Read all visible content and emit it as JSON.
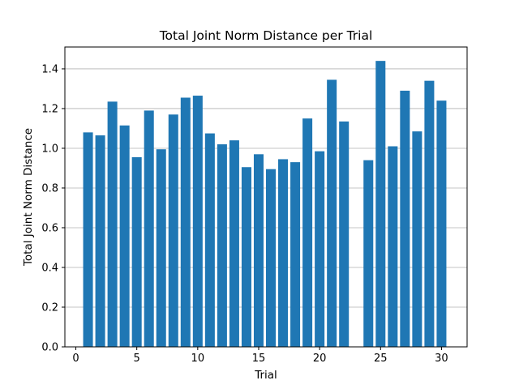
{
  "chart_data": {
    "type": "bar",
    "title": "Total Joint Norm Distance per Trial",
    "xlabel": "Trial",
    "ylabel": "Total Joint Norm Distance",
    "xlim": [
      -0.9,
      32.1
    ],
    "ylim": [
      0,
      1.51
    ],
    "xticks": [
      0,
      5,
      10,
      15,
      20,
      25,
      30
    ],
    "yticks": [
      0.0,
      0.2,
      0.4,
      0.6,
      0.8,
      1.0,
      1.2,
      1.4
    ],
    "ytick_labels": [
      "0.0",
      "0.2",
      "0.4",
      "0.6",
      "0.8",
      "1.0",
      "1.2",
      "1.4"
    ],
    "grid": {
      "y": true,
      "x": false
    },
    "bar_color": "#1f77b4",
    "bar_width": 0.8,
    "x": [
      1,
      2,
      3,
      4,
      5,
      6,
      7,
      8,
      9,
      10,
      11,
      12,
      13,
      14,
      15,
      16,
      17,
      18,
      19,
      20,
      21,
      22,
      24,
      25,
      26,
      27,
      28,
      29,
      30
    ],
    "values": [
      1.08,
      1.065,
      1.235,
      1.115,
      0.955,
      1.19,
      0.995,
      1.17,
      1.255,
      1.265,
      1.075,
      1.02,
      1.04,
      0.905,
      0.97,
      0.895,
      0.945,
      0.93,
      1.15,
      0.985,
      1.345,
      1.135,
      0.94,
      1.44,
      1.01,
      1.29,
      1.085,
      1.34,
      1.24
    ]
  }
}
